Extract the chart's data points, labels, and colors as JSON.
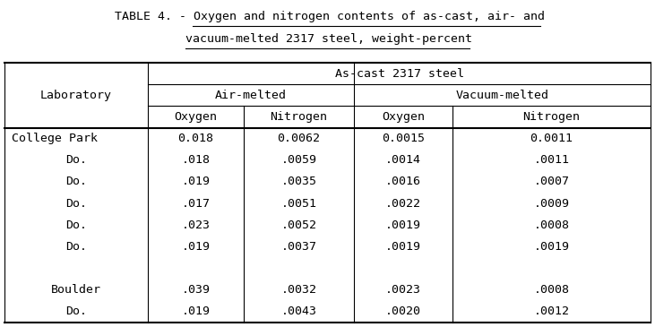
{
  "title_prefix": "TABLE 4. - ",
  "title_underlined1": "Oxygen and nitrogen contents of as-cast, air- and",
  "title_underlined2": "vacuum-melted 2317 steel, weight-percent",
  "header_level1": "As-cast 2317 steel",
  "header_level2_left": "Air-melted",
  "header_level2_right": "Vacuum-melted",
  "col_headers": [
    "Oxygen",
    "Nitrogen",
    "Oxygen",
    "Nitrogen"
  ],
  "row_header": "Laboratory",
  "rows": [
    [
      "College Park",
      "0.018",
      "0.0062",
      "0.0015",
      "0.0011"
    ],
    [
      "Do.",
      ".018",
      ".0059",
      ".0014",
      ".0011"
    ],
    [
      "Do.",
      ".019",
      ".0035",
      ".0016",
      ".0007"
    ],
    [
      "Do.",
      ".017",
      ".0051",
      ".0022",
      ".0009"
    ],
    [
      "Do.",
      ".023",
      ".0052",
      ".0019",
      ".0008"
    ],
    [
      "Do.",
      ".019",
      ".0037",
      ".0019",
      ".0019"
    ],
    [
      "",
      "",
      "",
      "",
      ""
    ],
    [
      "Boulder",
      ".039",
      ".0032",
      ".0023",
      ".0008"
    ],
    [
      "Do.",
      ".019",
      ".0043",
      ".0020",
      ".0012"
    ]
  ],
  "bg_color": "#ffffff",
  "font_family": "DejaVu Sans Mono",
  "font_size": 9.5,
  "fig_width": 7.31,
  "fig_height": 3.65
}
